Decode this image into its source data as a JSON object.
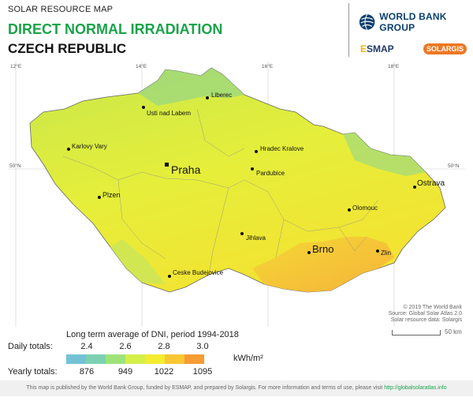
{
  "header": {
    "overline": "SOLAR RESOURCE MAP",
    "title": "DIRECT NORMAL IRRADIATION",
    "country": "CZECH REPUBLIC"
  },
  "logos": {
    "world_bank": "WORLD BANK GROUP",
    "esmap_e": "E",
    "esmap": "SMAP",
    "solargis": "SOLARGIS"
  },
  "map": {
    "graticule": [
      "12°E",
      "14°E",
      "16°E",
      "18°E",
      "50°N",
      "50°N"
    ],
    "cities": {
      "praha": "Praha",
      "brno": "Brno",
      "ostrava": "Ostrava",
      "plzen": "Plzen",
      "liberec": "Liberec",
      "usti": "Usti nad Labem",
      "karlovy": "Karlovy Vary",
      "hradec": "Hradec Kralove",
      "pardubice": "Pardubice",
      "olomouc": "Olomouc",
      "jihlava": "Jihlava",
      "zlin": "Zlin",
      "ceske": "Ceske Budejovice"
    },
    "credits": [
      "© 2019 The World Bank",
      "Source: Global Solar Atlas 2.0",
      "Solar resource data: Solargis"
    ],
    "scale": "50 km"
  },
  "legend": {
    "title": "Long term average of DNI, period 1994-2018",
    "daily_label": "Daily totals:",
    "yearly_label": "Yearly totals:",
    "daily_ticks": [
      "2.4",
      "2.6",
      "2.8",
      "3.0"
    ],
    "yearly_ticks": [
      "876",
      "949",
      "1022",
      "1095"
    ],
    "unit": "kWh/m²",
    "colors": [
      "#74c2d6",
      "#7dd1b2",
      "#9ee37a",
      "#d4ef4a",
      "#f4ec30",
      "#f9c733",
      "#f59c35"
    ]
  },
  "footer": {
    "text": "This map is published by the World Bank Group, funded by ESMAP, and prepared by Solargis. For more information and terms of use, please visit",
    "link": "http://globalsolaratlas.info"
  }
}
